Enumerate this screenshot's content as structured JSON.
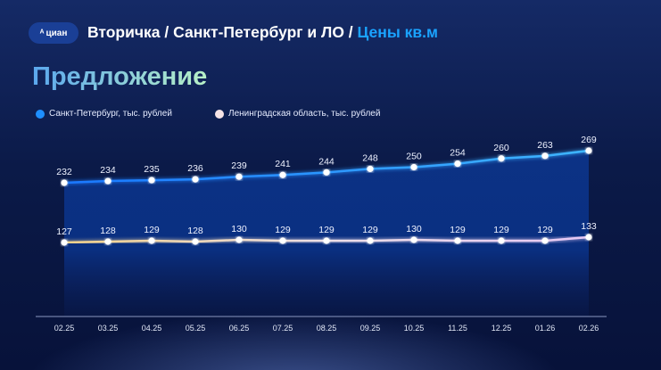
{
  "header": {
    "logo": "циан",
    "breadcrumb": "Вторичка / Санкт-Петербург и ЛО / ",
    "highlight": "Цены кв.м"
  },
  "title": "Предложение",
  "colors": {
    "spb": "#1e8fff",
    "lo": "#f5e3e6"
  },
  "chart_data": {
    "type": "line",
    "categories": [
      "02.25",
      "03.25",
      "04.25",
      "05.25",
      "06.25",
      "07.25",
      "08.25",
      "09.25",
      "10.25",
      "11.25",
      "12.25",
      "01.26",
      "02.26"
    ],
    "series": [
      {
        "name": "Санкт-Петербург, тыс. рублей",
        "values": [
          232,
          234,
          235,
          236,
          239,
          241,
          244,
          248,
          250,
          254,
          260,
          263,
          269
        ]
      },
      {
        "name": "Ленинградская область, тыс. рублей",
        "values": [
          127,
          128,
          129,
          128,
          130,
          129,
          129,
          129,
          130,
          129,
          129,
          129,
          133
        ]
      }
    ],
    "data_labels": true,
    "grid": false,
    "legend": "top-left"
  }
}
